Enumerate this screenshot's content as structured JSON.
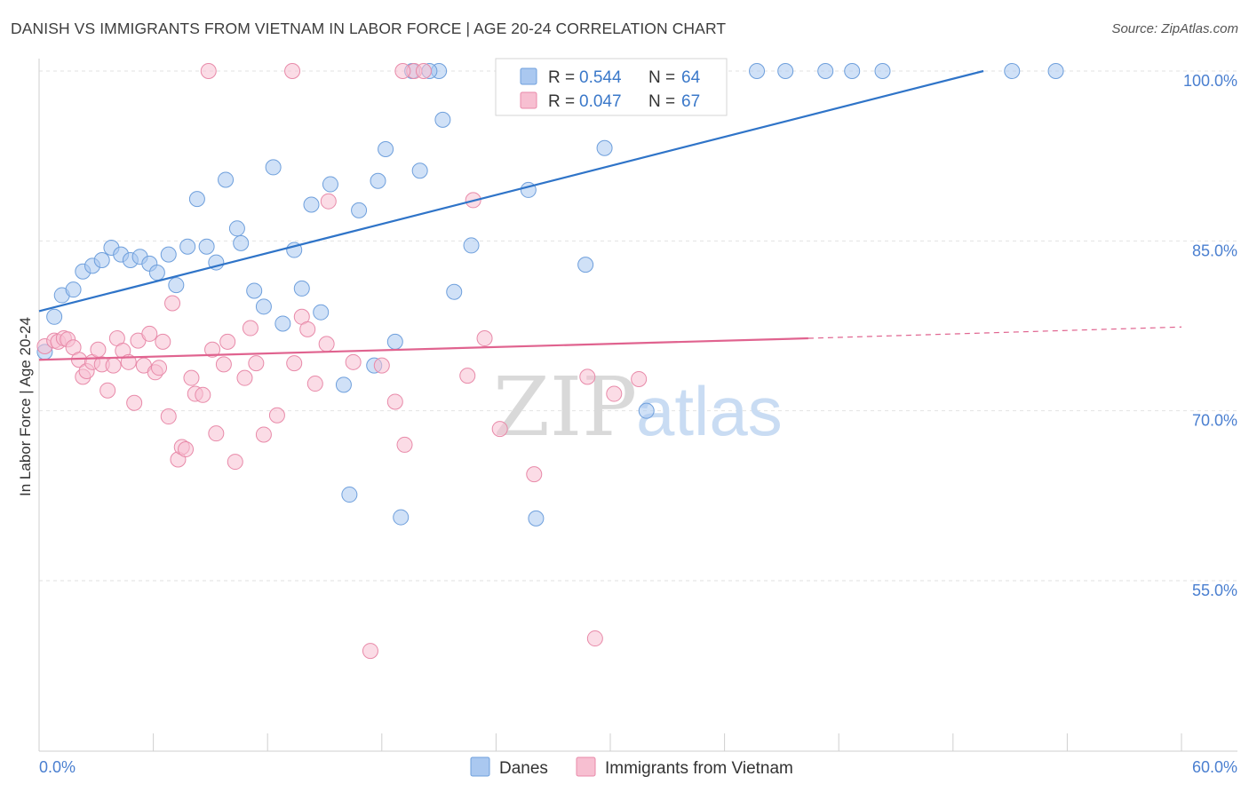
{
  "title": "DANISH VS IMMIGRANTS FROM VIETNAM IN LABOR FORCE | AGE 20-24 CORRELATION CHART",
  "source": "Source: ZipAtlas.com",
  "colors": {
    "danes_fill": "#aac8f0",
    "danes_stroke": "#6e9fdc",
    "danes_line": "#2f74c8",
    "vietnam_fill": "#f7bfd1",
    "vietnam_stroke": "#e88aa9",
    "vietnam_line": "#e0638f",
    "tick_text": "#4a7fd0",
    "grid": "#e2e2e2"
  },
  "watermark": {
    "zip": "ZIP",
    "atlas": "atlas"
  },
  "legend": {
    "r_label": "R =",
    "n_label": "N =",
    "danes": {
      "r": "0.544",
      "n": "64"
    },
    "vietnam": {
      "r": "0.047",
      "n": "67"
    }
  },
  "bottom_legend": {
    "danes": "Danes",
    "vietnam": "Immigrants from Vietnam"
  },
  "chart_data": {
    "type": "scatter",
    "title": "DANISH VS IMMIGRANTS FROM VIETNAM IN LABOR FORCE | AGE 20-24 CORRELATION CHART",
    "xlabel": "",
    "ylabel": "In Labor Force | Age 20-24",
    "xlim": [
      0,
      60
    ],
    "ylim": [
      43,
      102.5
    ],
    "x_tick_labels": [
      "0.0%",
      "60.0%"
    ],
    "y_ticks": [
      55,
      70,
      85,
      100
    ],
    "y_tick_labels": [
      "55.0%",
      "70.0%",
      "85.0%",
      "100.0%"
    ],
    "grid": true,
    "legend_position": "top-center",
    "series": [
      {
        "name": "Danes",
        "color": "#aac8f0",
        "points": [
          [
            0.3,
            75.2
          ],
          [
            0.8,
            78.3
          ],
          [
            1.2,
            80.2
          ],
          [
            1.8,
            80.7
          ],
          [
            2.3,
            82.3
          ],
          [
            2.8,
            82.8
          ],
          [
            3.3,
            83.3
          ],
          [
            3.8,
            84.4
          ],
          [
            4.3,
            83.8
          ],
          [
            4.8,
            83.3
          ],
          [
            5.3,
            83.6
          ],
          [
            5.8,
            83.0
          ],
          [
            6.2,
            82.2
          ],
          [
            6.8,
            83.8
          ],
          [
            7.2,
            81.1
          ],
          [
            7.8,
            84.5
          ],
          [
            8.3,
            88.7
          ],
          [
            8.8,
            84.5
          ],
          [
            9.3,
            83.1
          ],
          [
            9.8,
            90.4
          ],
          [
            10.4,
            86.1
          ],
          [
            10.6,
            84.8
          ],
          [
            11.3,
            80.6
          ],
          [
            11.8,
            79.2
          ],
          [
            12.3,
            91.5
          ],
          [
            12.8,
            77.7
          ],
          [
            13.4,
            84.2
          ],
          [
            13.8,
            80.8
          ],
          [
            14.3,
            88.2
          ],
          [
            14.8,
            78.7
          ],
          [
            15.3,
            90.0
          ],
          [
            16.0,
            72.3
          ],
          [
            16.3,
            62.6
          ],
          [
            16.8,
            87.7
          ],
          [
            17.6,
            74.0
          ],
          [
            17.8,
            90.3
          ],
          [
            18.2,
            93.1
          ],
          [
            18.7,
            76.1
          ],
          [
            19.0,
            60.6
          ],
          [
            19.6,
            100.0
          ],
          [
            20.0,
            91.2
          ],
          [
            21.0,
            100.0
          ],
          [
            21.2,
            95.7
          ],
          [
            21.8,
            80.5
          ],
          [
            22.7,
            84.6
          ],
          [
            25.0,
            100.0
          ],
          [
            25.7,
            89.5
          ],
          [
            26.1,
            60.5
          ],
          [
            27.5,
            100.0
          ],
          [
            28.7,
            82.9
          ],
          [
            29.7,
            93.2
          ],
          [
            30.8,
            100.0
          ],
          [
            31.9,
            70.0
          ],
          [
            33.7,
            100.0
          ],
          [
            34.9,
            100.0
          ],
          [
            37.7,
            100.0
          ],
          [
            39.2,
            100.0
          ],
          [
            41.3,
            100.0
          ],
          [
            42.7,
            100.0
          ],
          [
            44.3,
            100.0
          ],
          [
            51.1,
            100.0
          ],
          [
            53.4,
            100.0
          ],
          [
            20.5,
            100.0
          ],
          [
            35.0,
            100.0
          ]
        ]
      },
      {
        "name": "Immigrants from Vietnam",
        "color": "#f7bfd1",
        "points": [
          [
            0.3,
            75.7
          ],
          [
            0.8,
            76.2
          ],
          [
            1.0,
            76.1
          ],
          [
            1.3,
            76.4
          ],
          [
            1.5,
            76.3
          ],
          [
            1.8,
            75.6
          ],
          [
            2.1,
            74.5
          ],
          [
            2.3,
            73.0
          ],
          [
            2.5,
            73.5
          ],
          [
            2.8,
            74.3
          ],
          [
            3.1,
            75.4
          ],
          [
            3.3,
            74.1
          ],
          [
            3.6,
            71.8
          ],
          [
            3.9,
            74.0
          ],
          [
            4.1,
            76.4
          ],
          [
            4.4,
            75.3
          ],
          [
            4.7,
            74.3
          ],
          [
            5.0,
            70.7
          ],
          [
            5.2,
            76.2
          ],
          [
            5.5,
            74.0
          ],
          [
            5.8,
            76.8
          ],
          [
            6.1,
            73.4
          ],
          [
            6.3,
            73.8
          ],
          [
            6.5,
            76.1
          ],
          [
            6.8,
            69.5
          ],
          [
            7.0,
            79.5
          ],
          [
            7.3,
            65.7
          ],
          [
            7.5,
            66.8
          ],
          [
            7.7,
            66.6
          ],
          [
            8.0,
            72.9
          ],
          [
            8.2,
            71.5
          ],
          [
            8.6,
            71.4
          ],
          [
            8.9,
            100.0
          ],
          [
            9.1,
            75.4
          ],
          [
            9.3,
            68.0
          ],
          [
            9.7,
            74.1
          ],
          [
            9.9,
            76.1
          ],
          [
            10.3,
            65.5
          ],
          [
            10.8,
            72.9
          ],
          [
            11.1,
            77.3
          ],
          [
            11.4,
            74.2
          ],
          [
            11.8,
            67.9
          ],
          [
            12.5,
            69.6
          ],
          [
            13.3,
            100.0
          ],
          [
            13.4,
            74.2
          ],
          [
            13.8,
            78.3
          ],
          [
            14.1,
            77.2
          ],
          [
            14.5,
            72.4
          ],
          [
            15.1,
            75.9
          ],
          [
            16.5,
            74.3
          ],
          [
            17.4,
            48.8
          ],
          [
            18.0,
            74.0
          ],
          [
            18.7,
            70.8
          ],
          [
            19.2,
            67.0
          ],
          [
            19.7,
            100.0
          ],
          [
            20.2,
            100.0
          ],
          [
            22.5,
            73.1
          ],
          [
            23.4,
            76.4
          ],
          [
            24.2,
            68.4
          ],
          [
            26.0,
            64.4
          ],
          [
            28.8,
            73.0
          ],
          [
            29.2,
            49.9
          ],
          [
            30.2,
            71.5
          ],
          [
            31.5,
            72.8
          ],
          [
            19.1,
            100.0
          ],
          [
            15.2,
            88.5
          ],
          [
            22.8,
            88.6
          ]
        ]
      }
    ],
    "trend_lines": [
      {
        "series": "Danes",
        "from": [
          0,
          78.8
        ],
        "to": [
          49.6,
          100.0
        ],
        "style": "solid"
      },
      {
        "series": "Immigrants from Vietnam",
        "from": [
          0,
          74.5
        ],
        "to": [
          40.4,
          76.4
        ],
        "style": "solid"
      },
      {
        "series": "Immigrants from Vietnam",
        "from": [
          40.4,
          76.4
        ],
        "to": [
          60,
          77.4
        ],
        "style": "dashed"
      }
    ]
  }
}
